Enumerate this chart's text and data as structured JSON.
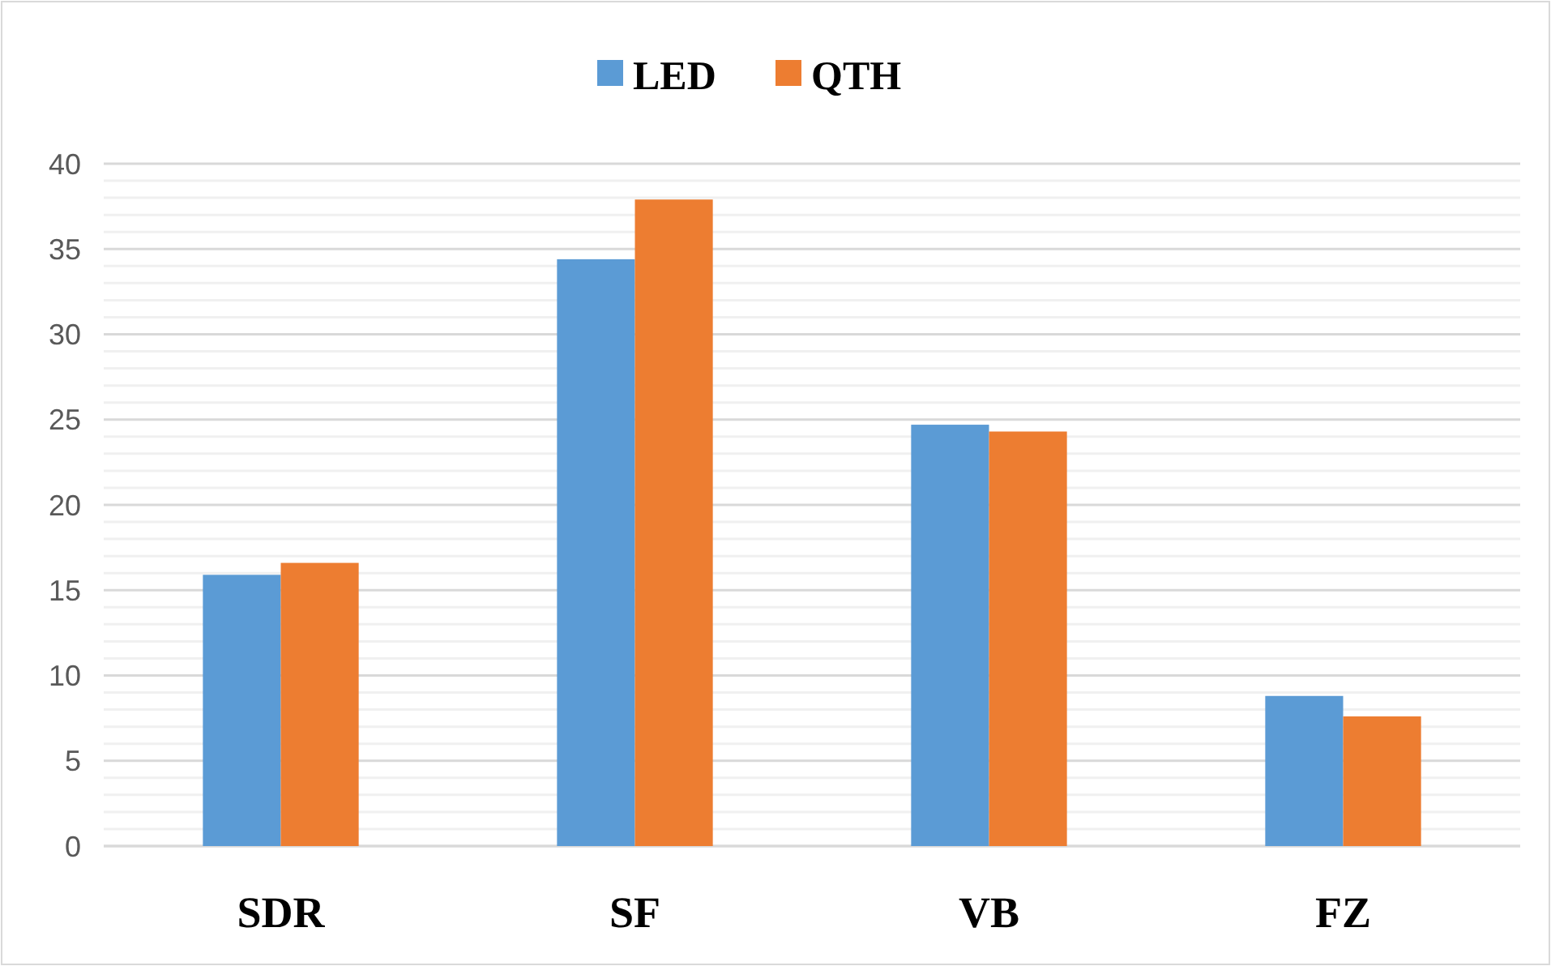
{
  "chart_data": {
    "type": "bar",
    "categories": [
      "SDR",
      "SF",
      "VB",
      "FZ"
    ],
    "series": [
      {
        "name": "LED",
        "color": "#5b9bd5",
        "values": [
          15.9,
          34.4,
          24.7,
          8.8
        ]
      },
      {
        "name": "QTH",
        "color": "#ed7d31",
        "values": [
          16.6,
          37.9,
          24.3,
          7.6
        ]
      }
    ],
    "ylim": [
      0,
      40
    ],
    "yticks": [
      0,
      5,
      10,
      15,
      20,
      25,
      30,
      35,
      40
    ],
    "grid": "y",
    "legend": "top"
  }
}
